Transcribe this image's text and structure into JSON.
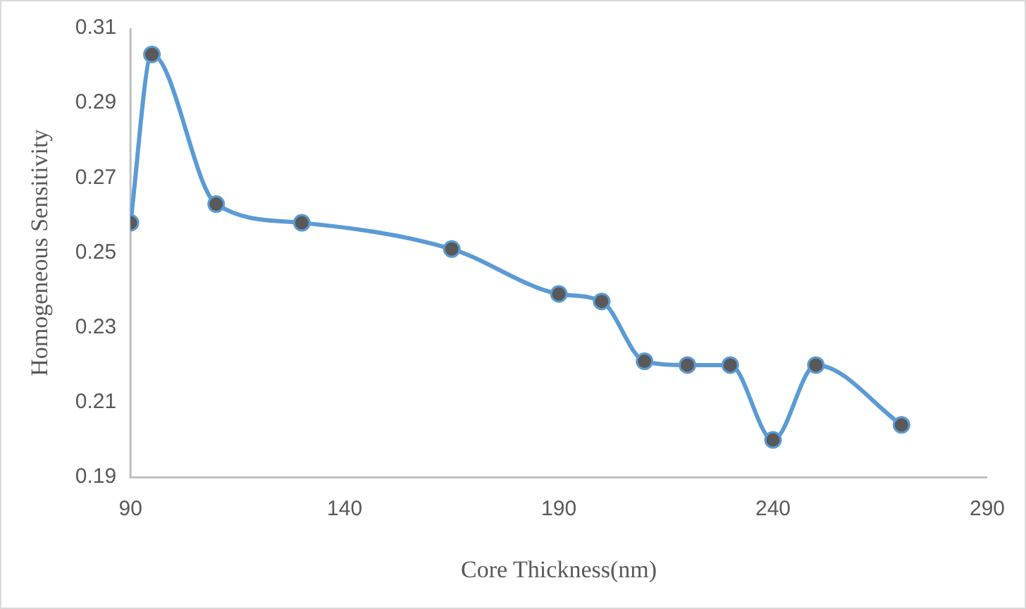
{
  "chart_data": {
    "type": "line",
    "xlabel": "Core Thickness(nm)",
    "ylabel": "Homogeneous Sensitivity",
    "x": [
      90,
      95,
      110,
      130,
      165,
      190,
      200,
      210,
      220,
      230,
      240,
      250,
      270
    ],
    "series": [
      {
        "color": "#5b9bd5",
        "values": [
          0.258,
          0.303,
          0.263,
          0.258,
          0.251,
          0.239,
          0.237,
          0.221,
          0.22,
          0.22,
          0.2,
          0.22,
          0.204
        ]
      }
    ],
    "xlim": [
      90,
      290
    ],
    "xticks": [
      90,
      140,
      190,
      240,
      290
    ],
    "ylim": [
      0.19,
      0.31
    ],
    "yticks": [
      0.19,
      0.21,
      0.23,
      0.25,
      0.27,
      0.29,
      0.31
    ],
    "grid": false,
    "legend": false,
    "marker": "circle",
    "line_style": "solid"
  }
}
